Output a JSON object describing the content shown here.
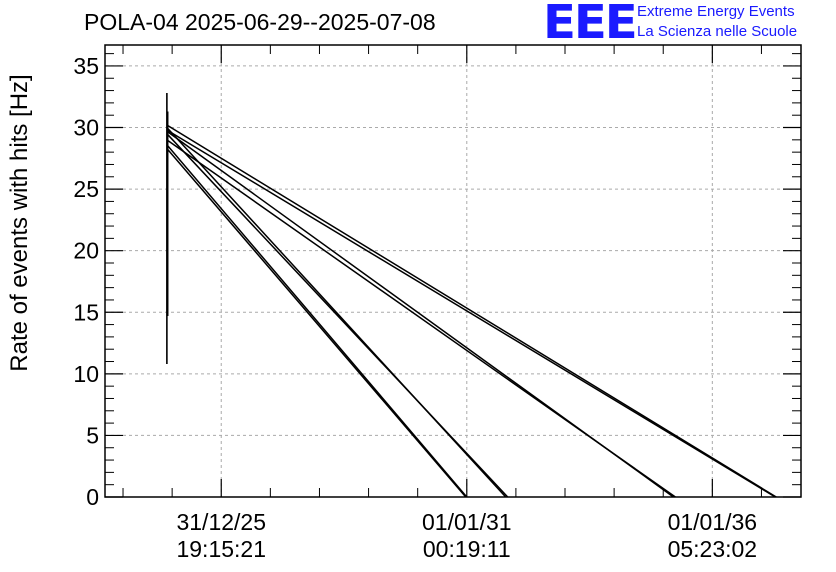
{
  "chart_data": {
    "type": "line",
    "title": "POLA-04 2025-06-29--2025-07-08",
    "xlabel": "",
    "ylabel": "Rate of events with hits [Hz]",
    "ylim": [
      0,
      36.7
    ],
    "yticks": [
      0,
      5,
      10,
      15,
      20,
      25,
      30,
      35
    ],
    "xticks": [
      {
        "date": "31/12/25",
        "time": "19:15:21"
      },
      {
        "date": "01/01/31",
        "time": "00:19:11"
      },
      {
        "date": "01/01/36",
        "time": "05:23:02"
      }
    ],
    "xlim_ticks": [
      -0.4734,
      2.3611
    ],
    "grid": true,
    "vertical_spike": {
      "x_ticks": -0.2214,
      "y_min": 10.8,
      "y_max": 32.8,
      "y_max_short": 14.7
    },
    "series": [
      {
        "name": "line1",
        "start": [
          -0.2214,
          28.3
        ],
        "end": [
          0.9959,
          0.0
        ]
      },
      {
        "name": "line2",
        "start": [
          -0.2214,
          28.6
        ],
        "end": [
          1.0,
          0.0
        ]
      },
      {
        "name": "line3",
        "start": [
          -0.2214,
          30.0
        ],
        "end": [
          1.1585,
          0.0
        ]
      },
      {
        "name": "line4",
        "start": [
          -0.2214,
          29.5
        ],
        "end": [
          1.1667,
          0.0
        ]
      },
      {
        "name": "line5",
        "start": [
          -0.2214,
          29.7
        ],
        "end": [
          1.8415,
          0.0
        ]
      },
      {
        "name": "line6",
        "start": [
          -0.2214,
          29.0
        ],
        "end": [
          1.8496,
          0.0
        ]
      },
      {
        "name": "line7",
        "start": [
          -0.2214,
          29.8
        ],
        "end": [
          2.2561,
          0.0
        ]
      },
      {
        "name": "line8",
        "start": [
          -0.2214,
          30.2
        ],
        "end": [
          2.2602,
          0.0
        ]
      }
    ]
  },
  "logo": {
    "mark": "EEE",
    "line1": "Extreme Energy Events",
    "line2": "La Scienza nelle Scuole"
  }
}
